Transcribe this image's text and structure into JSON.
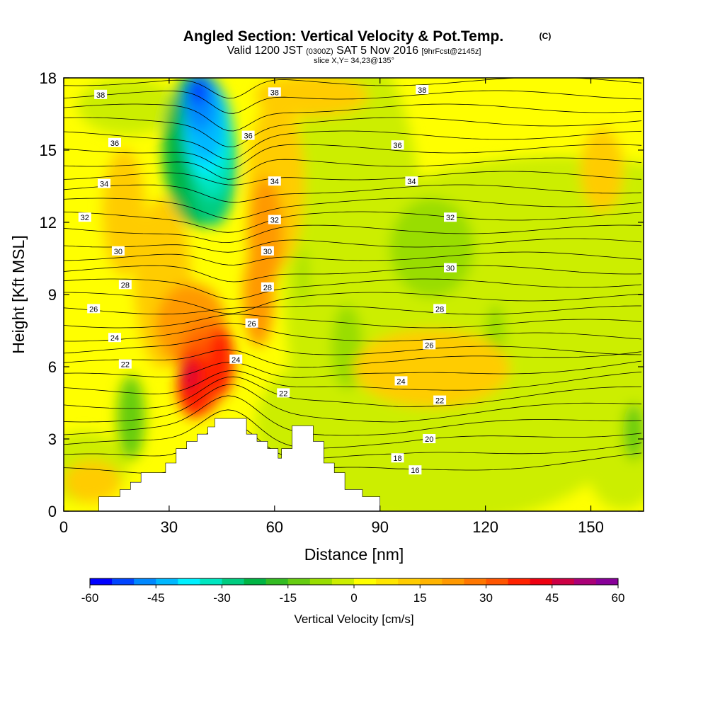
{
  "chart_data": {
    "type": "heatmap",
    "title": "Angled Section: Vertical Velocity & Pot.Temp.",
    "title_mark": "(C)",
    "subtitle_parts": [
      "Valid 1200 JST",
      "(0300Z)",
      "SAT 5 Nov 2016",
      "[9hrFcst@2145z]"
    ],
    "slice_label": "slice X,Y= 34,23@135°",
    "xlabel": "Distance [nm]",
    "ylabel": "Height [Kft MSL]",
    "xlim": [
      0,
      165
    ],
    "ylim": [
      0,
      18
    ],
    "xticks": [
      0,
      30,
      60,
      90,
      120,
      150
    ],
    "yticks": [
      0,
      3,
      6,
      9,
      12,
      15,
      18
    ],
    "colorbar": {
      "label": "Vertical Velocity [cm/s]",
      "range": [
        -60,
        60
      ],
      "tick_values": [
        -60,
        -45,
        -30,
        -15,
        0,
        15,
        30,
        45,
        60
      ],
      "tick_labels": [
        "-60",
        "-45",
        "-30",
        "-15",
        "0",
        "15",
        "30",
        "45",
        "60"
      ],
      "colors": [
        "#0000ff",
        "#0044ff",
        "#0088ff",
        "#00b8ff",
        "#00f0ff",
        "#00e6c0",
        "#00cc80",
        "#00b444",
        "#33bb22",
        "#66cc11",
        "#99dd00",
        "#ccee00",
        "#ffff00",
        "#ffe600",
        "#ffcc00",
        "#ffb400",
        "#ff9900",
        "#ff7700",
        "#ff5500",
        "#ff2200",
        "#ee0011",
        "#cc0044",
        "#aa0077",
        "#880099"
      ]
    },
    "contour_labels": [
      {
        "text": "38",
        "x": 10.5,
        "y": 17.3
      },
      {
        "text": "38",
        "x": 60,
        "y": 17.4
      },
      {
        "text": "38",
        "x": 102,
        "y": 17.5
      },
      {
        "text": "36",
        "x": 14.5,
        "y": 15.3
      },
      {
        "text": "36",
        "x": 52.5,
        "y": 15.6
      },
      {
        "text": "36",
        "x": 95,
        "y": 15.2
      },
      {
        "text": "34",
        "x": 11.5,
        "y": 13.6
      },
      {
        "text": "34",
        "x": 60,
        "y": 13.7
      },
      {
        "text": "34",
        "x": 99,
        "y": 13.7
      },
      {
        "text": "32",
        "x": 6,
        "y": 12.2
      },
      {
        "text": "32",
        "x": 60,
        "y": 12.1
      },
      {
        "text": "32",
        "x": 110,
        "y": 12.2
      },
      {
        "text": "30",
        "x": 15.5,
        "y": 10.8
      },
      {
        "text": "30",
        "x": 58,
        "y": 10.8
      },
      {
        "text": "30",
        "x": 110,
        "y": 10.1
      },
      {
        "text": "28",
        "x": 17.5,
        "y": 9.4
      },
      {
        "text": "28",
        "x": 58,
        "y": 9.3
      },
      {
        "text": "28",
        "x": 107,
        "y": 8.4
      },
      {
        "text": "26",
        "x": 8.5,
        "y": 8.4
      },
      {
        "text": "26",
        "x": 53.5,
        "y": 7.8
      },
      {
        "text": "26",
        "x": 104,
        "y": 6.9
      },
      {
        "text": "24",
        "x": 14.5,
        "y": 7.2
      },
      {
        "text": "24",
        "x": 49,
        "y": 6.3
      },
      {
        "text": "24",
        "x": 96,
        "y": 5.4
      },
      {
        "text": "22",
        "x": 17.5,
        "y": 6.1
      },
      {
        "text": "22",
        "x": 62.5,
        "y": 4.9
      },
      {
        "text": "22",
        "x": 107,
        "y": 4.6
      },
      {
        "text": "20",
        "x": 104,
        "y": 3.0
      },
      {
        "text": "18",
        "x": 95,
        "y": 2.2
      },
      {
        "text": "16",
        "x": 100,
        "y": 1.7
      }
    ],
    "terrain_profile": [
      [
        0,
        0
      ],
      [
        10,
        0
      ],
      [
        10,
        0.6
      ],
      [
        16,
        0.6
      ],
      [
        16,
        0.9
      ],
      [
        19,
        0.9
      ],
      [
        19,
        1.2
      ],
      [
        22,
        1.2
      ],
      [
        22,
        1.6
      ],
      [
        29,
        1.6
      ],
      [
        29,
        2.0
      ],
      [
        32,
        2.0
      ],
      [
        32,
        2.6
      ],
      [
        35,
        2.6
      ],
      [
        35,
        2.9
      ],
      [
        38,
        2.9
      ],
      [
        38,
        3.2
      ],
      [
        41,
        3.2
      ],
      [
        41,
        3.5
      ],
      [
        43,
        3.5
      ],
      [
        43,
        3.85
      ],
      [
        52,
        3.85
      ],
      [
        52,
        3.2
      ],
      [
        55,
        3.2
      ],
      [
        55,
        2.9
      ],
      [
        58,
        2.9
      ],
      [
        58,
        2.6
      ],
      [
        61,
        2.6
      ],
      [
        61,
        2.2
      ],
      [
        62,
        2.2
      ],
      [
        62,
        2.6
      ],
      [
        65,
        2.6
      ],
      [
        65,
        3.55
      ],
      [
        71,
        3.55
      ],
      [
        71,
        2.9
      ],
      [
        74,
        2.9
      ],
      [
        74,
        2.0
      ],
      [
        77,
        2.0
      ],
      [
        77,
        1.6
      ],
      [
        80,
        1.6
      ],
      [
        80,
        0.9
      ],
      [
        85,
        0.9
      ],
      [
        85,
        0.6
      ],
      [
        90,
        0.6
      ],
      [
        90,
        0
      ],
      [
        165,
        0
      ]
    ]
  }
}
